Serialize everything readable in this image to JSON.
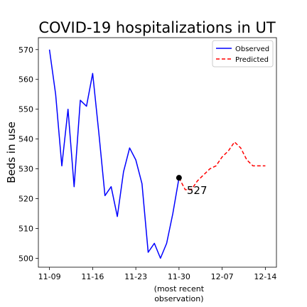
{
  "chart_data": {
    "type": "line",
    "title": "COVID-19 hospitalizations in UT",
    "xlabel": "",
    "ylabel": "Beds in use",
    "x_tick_labels": [
      "11-09",
      "11-16",
      "11-23",
      "11-30",
      "12-07",
      "12-14"
    ],
    "x_tick_values": [
      0,
      7,
      14,
      21,
      28,
      35
    ],
    "x_sublabel": [
      "(most recent",
      "observation)"
    ],
    "yticks": [
      500,
      510,
      520,
      530,
      540,
      550,
      560,
      570
    ],
    "ylim": [
      497,
      574
    ],
    "xlim": [
      -1.8,
      36.8
    ],
    "grid": false,
    "legend_position": "top-right",
    "series": [
      {
        "name": "Observed",
        "color": "#0000ff",
        "style": "solid",
        "x": [
          0,
          1,
          2,
          3,
          4,
          5,
          6,
          7,
          8,
          9,
          10,
          11,
          12,
          13,
          14,
          15,
          16,
          17,
          18,
          19,
          20,
          21
        ],
        "y": [
          570,
          555,
          531,
          550,
          524,
          553,
          551,
          562,
          542,
          521,
          524,
          514,
          529,
          537,
          533,
          525,
          502,
          505,
          500,
          505,
          515,
          527
        ]
      },
      {
        "name": "Predicted",
        "color": "#ff0000",
        "style": "dashed",
        "x": [
          21,
          22,
          23,
          24,
          25,
          26,
          27,
          28,
          29,
          30,
          31,
          32,
          33,
          34,
          35
        ],
        "y": [
          527,
          523,
          523,
          526,
          528,
          530,
          531,
          534,
          536,
          539,
          537,
          533,
          531,
          531,
          531
        ]
      }
    ],
    "marker": {
      "x": 21,
      "y": 527,
      "color": "#000000"
    },
    "annotation": {
      "text": "527",
      "x": 21,
      "y": 527
    }
  }
}
